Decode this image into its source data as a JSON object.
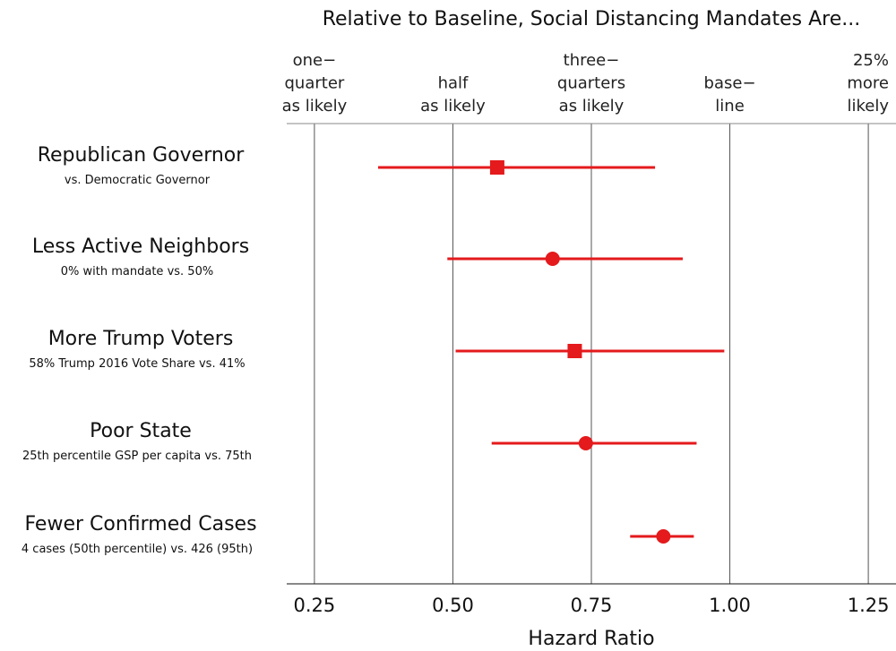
{
  "chart_data": {
    "type": "forest",
    "title": "Relative to Baseline, Social Distancing Mandates Are...",
    "xlabel": "Hazard Ratio",
    "xlim": [
      0.2,
      1.3
    ],
    "xticks": [
      0.25,
      0.5,
      0.75,
      1.0,
      1.25
    ],
    "xtick_labels": [
      "0.25",
      "0.50",
      "0.75",
      "1.00",
      "1.25"
    ],
    "top_labels": [
      {
        "x": 0.25,
        "lines": [
          "one−",
          "quarter",
          "as likely"
        ]
      },
      {
        "x": 0.5,
        "lines": [
          "half",
          "as likely"
        ]
      },
      {
        "x": 0.75,
        "lines": [
          "three−",
          "quarters",
          "as likely"
        ]
      },
      {
        "x": 1.0,
        "lines": [
          "base−",
          "line"
        ]
      },
      {
        "x": 1.25,
        "lines": [
          "25%",
          "more",
          "likely"
        ]
      }
    ],
    "grid": "vertical",
    "color": "#e41a1c",
    "rows": [
      {
        "label": "Republican Governor",
        "sublabel": "vs. Democratic Governor",
        "estimate": 0.58,
        "lower": 0.365,
        "upper": 0.865,
        "marker": "square"
      },
      {
        "label": "Less Active Neighbors",
        "sublabel": "0% with mandate vs. 50%",
        "estimate": 0.68,
        "lower": 0.49,
        "upper": 0.915,
        "marker": "circle"
      },
      {
        "label": "More Trump Voters",
        "sublabel": "58% Trump 2016 Vote Share vs. 41%",
        "estimate": 0.72,
        "lower": 0.505,
        "upper": 0.99,
        "marker": "square"
      },
      {
        "label": "Poor State",
        "sublabel": "25th percentile GSP per capita vs. 75th",
        "estimate": 0.74,
        "lower": 0.57,
        "upper": 0.94,
        "marker": "circle"
      },
      {
        "label": "Fewer Confirmed Cases",
        "sublabel": "4 cases (50th percentile) vs. 426 (95th)",
        "estimate": 0.88,
        "lower": 0.82,
        "upper": 0.935,
        "marker": "circle"
      }
    ]
  }
}
